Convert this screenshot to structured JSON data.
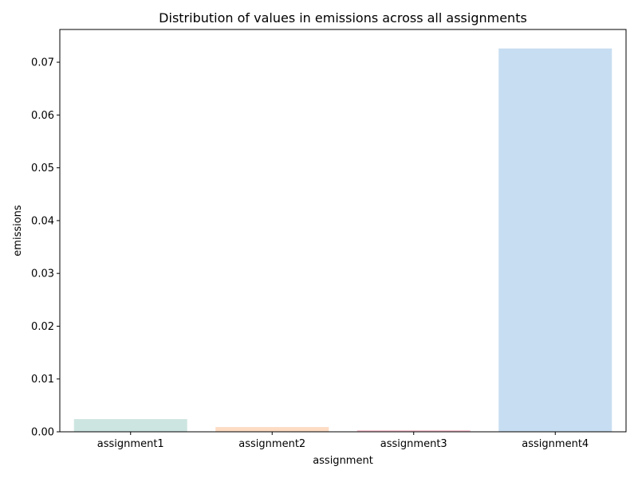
{
  "chart_data": {
    "type": "bar",
    "title": "Distribution of values in emissions across all assignments",
    "xlabel": "assignment",
    "ylabel": "emissions",
    "categories": [
      "assignment1",
      "assignment2",
      "assignment3",
      "assignment4"
    ],
    "values": [
      0.0024,
      0.0009,
      0.0003,
      0.0726
    ],
    "colors": [
      "#cde5e0",
      "#fddcc4",
      "#f6c5d2",
      "#c7ddf1"
    ],
    "ylim": [
      0,
      0.0762
    ],
    "yticks": [
      0.0,
      0.01,
      0.02,
      0.03,
      0.04,
      0.05,
      0.06,
      0.07
    ],
    "ytick_labels": [
      "0.00",
      "0.01",
      "0.02",
      "0.03",
      "0.04",
      "0.05",
      "0.06",
      "0.07"
    ],
    "grid": false,
    "legend": "none"
  }
}
